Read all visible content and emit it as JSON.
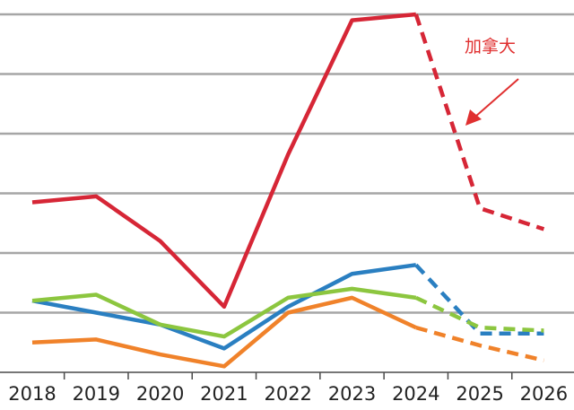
{
  "chart_data": {
    "type": "line",
    "title": "",
    "xlabel": "",
    "ylabel": "",
    "categories": [
      "2018",
      "2019",
      "2020",
      "2021",
      "2022",
      "2023",
      "2024",
      "2025",
      "2026"
    ],
    "projection_from": "2024",
    "ylim": [
      0,
      12
    ],
    "grid": true,
    "series": [
      {
        "name": "加拿大",
        "color": "#d62636",
        "values": [
          5.7,
          5.9,
          4.4,
          2.2,
          7.3,
          11.8,
          12.0,
          5.5,
          4.8
        ]
      },
      {
        "name": "",
        "color": "#2a7fc1",
        "values": [
          2.4,
          2.0,
          1.6,
          0.8,
          2.2,
          3.3,
          3.6,
          1.3,
          1.3
        ]
      },
      {
        "name": "",
        "color": "#8cc63f",
        "values": [
          2.4,
          2.6,
          1.6,
          1.2,
          2.5,
          2.8,
          2.5,
          1.5,
          1.4
        ]
      },
      {
        "name": "",
        "color": "#f0822a",
        "values": [
          1.0,
          1.1,
          0.6,
          0.2,
          2.0,
          2.5,
          1.5,
          0.9,
          0.4
        ]
      }
    ],
    "annotations": [
      {
        "text": "加拿大",
        "color": "#e03030",
        "arrow": true,
        "points_to_series": "加拿大",
        "near": "2025"
      }
    ]
  }
}
